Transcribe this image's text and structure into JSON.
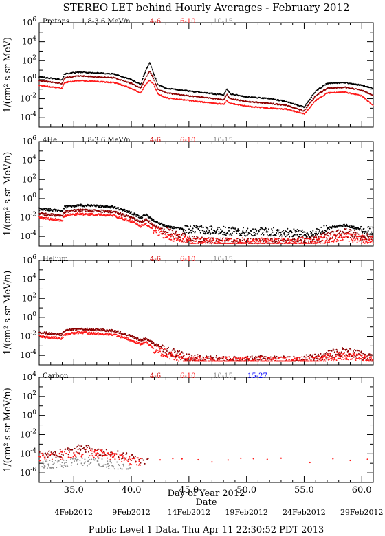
{
  "figure": {
    "title": "STEREO LET behind Hourly Averages - February 2012",
    "xlabel": "Day of Year 2012",
    "date_axis_label": "Date",
    "footer": "Public Level 1 Data. Thu Apr 11 22:30:52 PDT 2013",
    "date_ticks": [
      {
        "x": 35.0,
        "label": "4Feb2012"
      },
      {
        "x": 40.0,
        "label": "9Feb2012"
      },
      {
        "x": 45.0,
        "label": "14Feb2012"
      },
      {
        "x": 50.0,
        "label": "19Feb2012"
      },
      {
        "x": 55.0,
        "label": "24Feb2012"
      },
      {
        "x": 60.0,
        "label": "29Feb2012"
      }
    ]
  },
  "colors": {
    "black": "#000000",
    "darkred": "#8b0000",
    "red": "#ff1a1a",
    "gray": "#8c8c8c",
    "blue": "#0000ff"
  },
  "chart_data": [
    {
      "type": "scatter",
      "species": "Protons",
      "legend": [
        {
          "label": "1.8-3.6 MeV/n",
          "color": "#000000"
        },
        {
          "label": "4-6",
          "color": "#cc0000"
        },
        {
          "label": "6-10",
          "color": "#ff1a1a"
        },
        {
          "label": "10-15",
          "color": "#8c8c8c"
        }
      ],
      "ylabel": "1/(cm² s sr MeV)",
      "xlim": [
        32.0,
        61.0
      ],
      "ylim_log10": [
        -5,
        6
      ],
      "yticks_log10": [
        -4,
        -2,
        0,
        2,
        4,
        6
      ],
      "xticks": [
        35.0,
        40.0,
        45.0,
        50.0,
        55.0,
        60.0
      ],
      "xtick_labels": [],
      "series": [
        {
          "name": "1.8-3.6 MeV/n",
          "color": "#000000",
          "x": [
            32.0,
            34.0,
            34.2,
            35.5,
            37.0,
            38.5,
            40.0,
            40.8,
            41.3,
            41.6,
            41.9,
            42.3,
            43.0,
            45.0,
            48.0,
            48.3,
            48.6,
            50.0,
            52.0,
            53.5,
            55.0,
            55.3,
            56.0,
            57.0,
            58.5,
            60.0,
            61.0
          ],
          "y": [
            0.3,
            0.0,
            0.6,
            0.8,
            0.7,
            0.6,
            0.0,
            -0.5,
            1.1,
            1.8,
            0.8,
            -0.5,
            -0.9,
            -1.2,
            -1.6,
            -1.0,
            -1.5,
            -1.8,
            -2.0,
            -2.3,
            -2.9,
            -2.4,
            -1.2,
            -0.4,
            -0.3,
            -0.6,
            -0.9
          ]
        },
        {
          "name": "4-6",
          "color": "#8b0000",
          "x": [
            32.0,
            34.0,
            34.2,
            35.5,
            37.0,
            38.5,
            40.0,
            40.8,
            41.3,
            41.6,
            41.9,
            42.3,
            43.0,
            45.0,
            48.0,
            48.3,
            48.6,
            50.0,
            52.0,
            53.5,
            55.0,
            55.3,
            56.0,
            57.0,
            58.5,
            60.0,
            61.0
          ],
          "y": [
            -0.1,
            -0.4,
            0.2,
            0.4,
            0.3,
            0.2,
            -0.4,
            -0.9,
            0.3,
            0.9,
            0.2,
            -1.0,
            -1.4,
            -1.7,
            -2.1,
            -1.6,
            -2.0,
            -2.3,
            -2.5,
            -2.7,
            -3.3,
            -2.8,
            -1.7,
            -0.9,
            -0.8,
            -1.1,
            -1.7
          ]
        },
        {
          "name": "6-10",
          "color": "#ff1a1a",
          "x": [
            32.0,
            34.0,
            34.2,
            35.5,
            37.0,
            38.5,
            40.0,
            40.8,
            41.3,
            41.6,
            41.9,
            42.3,
            43.0,
            45.0,
            48.0,
            48.3,
            48.6,
            50.0,
            52.0,
            53.5,
            55.0,
            55.3,
            56.0,
            57.0,
            58.5,
            60.0,
            61.0
          ],
          "y": [
            -0.6,
            -0.9,
            -0.3,
            -0.1,
            -0.2,
            -0.3,
            -0.9,
            -1.4,
            -0.4,
            -0.1,
            -0.4,
            -1.5,
            -1.9,
            -2.2,
            -2.6,
            -2.2,
            -2.5,
            -2.8,
            -3.0,
            -3.1,
            -3.6,
            -3.2,
            -2.2,
            -1.4,
            -1.3,
            -1.7,
            -2.7
          ]
        }
      ]
    },
    {
      "type": "scatter",
      "species": "4He",
      "legend": [
        {
          "label": "1.8-3.6 MeV/n",
          "color": "#000000"
        },
        {
          "label": "4-6",
          "color": "#cc0000"
        },
        {
          "label": "6-10",
          "color": "#ff1a1a"
        },
        {
          "label": "10-15",
          "color": "#8c8c8c"
        }
      ],
      "ylabel": "1/(cm² s sr MeV/n)",
      "xlim": [
        32.0,
        61.0
      ],
      "ylim_log10": [
        -5,
        6
      ],
      "yticks_log10": [
        -4,
        -2,
        0,
        2,
        4,
        6
      ],
      "xticks": [
        35.0,
        40.0,
        45.0,
        50.0,
        55.0,
        60.0
      ],
      "xtick_labels": [],
      "series": [
        {
          "name": "1.8-3.6 MeV/n",
          "color": "#000000",
          "x": [
            32.0,
            34.0,
            34.2,
            35.5,
            37.0,
            38.5,
            40.0,
            40.8,
            41.3,
            42.0,
            43.0,
            44.5,
            46.0,
            48.0,
            50.0,
            52.0,
            54.0,
            55.5,
            56.5,
            57.5,
            58.5,
            59.5,
            61.0
          ],
          "y": [
            -1.1,
            -1.3,
            -0.9,
            -0.7,
            -0.8,
            -0.9,
            -1.5,
            -2.0,
            -1.7,
            -2.4,
            -2.9,
            -3.2,
            -3.3,
            -3.4,
            -3.5,
            -3.5,
            -3.6,
            -3.8,
            -3.4,
            -3.0,
            -2.8,
            -3.1,
            -3.5
          ]
        },
        {
          "name": "4-6",
          "color": "#8b0000",
          "x": [
            32.0,
            34.0,
            34.2,
            35.5,
            37.0,
            38.5,
            40.0,
            40.8,
            41.3,
            42.0,
            43.0,
            44.0,
            45.0,
            46.0,
            48.0,
            50.0,
            52.0,
            54.0,
            56.0,
            57.5,
            58.5,
            60.0,
            61.0
          ],
          "y": [
            -1.6,
            -1.8,
            -1.4,
            -1.2,
            -1.3,
            -1.4,
            -2.0,
            -2.5,
            -2.2,
            -2.9,
            -3.4,
            -3.9,
            -4.3,
            -4.5,
            -4.6,
            -4.6,
            -4.6,
            -4.6,
            -4.3,
            -3.8,
            -3.6,
            -3.9,
            -4.3
          ]
        },
        {
          "name": "6-10",
          "color": "#ff1a1a",
          "x": [
            32.0,
            34.0,
            34.2,
            35.5,
            37.0,
            38.5,
            40.0,
            40.8,
            41.3,
            42.0,
            43.0,
            44.0,
            45.0,
            46.0,
            48.0,
            50.0,
            52.0,
            54.0,
            56.0,
            57.5,
            58.5,
            60.0,
            61.0
          ],
          "y": [
            -2.0,
            -2.3,
            -1.8,
            -1.6,
            -1.7,
            -1.8,
            -2.4,
            -2.9,
            -2.7,
            -3.4,
            -3.8,
            -4.2,
            -4.5,
            -4.6,
            -4.6,
            -4.6,
            -4.6,
            -4.6,
            -4.5,
            -4.1,
            -4.0,
            -4.3,
            -4.5
          ]
        }
      ]
    },
    {
      "type": "scatter",
      "species": "Helium",
      "legend": [
        {
          "label": "4-6",
          "color": "#cc0000"
        },
        {
          "label": "6-10",
          "color": "#ff1a1a"
        },
        {
          "label": "10-15",
          "color": "#8c8c8c"
        }
      ],
      "ylabel": "1/(cm² s sr MeV/n)",
      "xlim": [
        32.0,
        61.0
      ],
      "ylim_log10": [
        -5,
        6
      ],
      "yticks_log10": [
        -4,
        -2,
        0,
        2,
        4,
        6
      ],
      "xticks": [
        35.0,
        40.0,
        45.0,
        50.0,
        55.0,
        60.0
      ],
      "xtick_labels": [],
      "series": [
        {
          "name": "4-6",
          "color": "#8b0000",
          "x": [
            32.0,
            34.0,
            34.2,
            35.5,
            37.0,
            38.5,
            40.0,
            40.8,
            41.3,
            42.0,
            43.0,
            44.0,
            45.0,
            46.0,
            48.0,
            50.0,
            52.0,
            54.0,
            56.0,
            57.5,
            58.5,
            60.0,
            61.0
          ],
          "y": [
            -1.6,
            -1.8,
            -1.4,
            -1.2,
            -1.3,
            -1.4,
            -2.0,
            -2.4,
            -2.2,
            -2.8,
            -3.4,
            -3.9,
            -4.3,
            -4.4,
            -4.5,
            -4.5,
            -4.5,
            -4.5,
            -4.3,
            -3.8,
            -3.6,
            -4.0,
            -4.3
          ]
        },
        {
          "name": "6-10",
          "color": "#ff1a1a",
          "x": [
            32.0,
            34.0,
            34.2,
            35.5,
            37.0,
            38.5,
            40.0,
            40.8,
            41.3,
            42.0,
            43.0,
            44.0,
            45.0,
            46.0,
            48.0,
            50.0,
            52.0,
            54.0,
            56.0,
            57.5,
            58.5,
            60.0,
            61.0
          ],
          "y": [
            -2.0,
            -2.2,
            -1.8,
            -1.6,
            -1.7,
            -1.8,
            -2.4,
            -2.8,
            -2.6,
            -3.3,
            -3.8,
            -4.2,
            -4.5,
            -4.6,
            -4.6,
            -4.6,
            -4.6,
            -4.6,
            -4.5,
            -4.2,
            -4.0,
            -4.3,
            -4.5
          ]
        }
      ]
    },
    {
      "type": "scatter",
      "species": "Carbon",
      "legend": [
        {
          "label": "4-6",
          "color": "#cc0000"
        },
        {
          "label": "6-10",
          "color": "#ff1a1a"
        },
        {
          "label": "10-15",
          "color": "#8c8c8c"
        },
        {
          "label": "15-27",
          "color": "#0000ff"
        }
      ],
      "ylabel": "1/(cm² s sr MeV/n)",
      "xlim": [
        32.0,
        61.0
      ],
      "ylim_log10": [
        -7,
        4
      ],
      "yticks_log10": [
        -6,
        -4,
        -2,
        0,
        2,
        4
      ],
      "xticks": [
        35.0,
        40.0,
        45.0,
        50.0,
        55.0,
        60.0
      ],
      "xtick_labels": [
        "35.0",
        "40.0",
        "45.0",
        "50.0",
        "55.0",
        "60.0"
      ],
      "series": [
        {
          "name": "4-6",
          "color": "#8b0000",
          "x": [
            32.0,
            33.0,
            34.0,
            35.0,
            35.5,
            36.5,
            37.5,
            38.5,
            39.5,
            40.5,
            41.5
          ],
          "y": [
            -4.0,
            -4.0,
            -3.9,
            -3.6,
            -3.5,
            -3.6,
            -3.8,
            -4.0,
            -4.3,
            -4.5,
            -4.8
          ]
        },
        {
          "name": "6-10",
          "color": "#ff1a1a",
          "x": [
            32.0,
            33.0,
            34.0,
            35.0,
            36.0,
            37.0,
            38.0,
            39.0,
            40.0,
            41.0
          ],
          "y": [
            -4.3,
            -4.3,
            -4.2,
            -3.9,
            -3.9,
            -4.0,
            -4.2,
            -4.4,
            -4.7,
            -4.9
          ]
        },
        {
          "name": "10-15",
          "color": "#8c8c8c",
          "x": [
            32.0,
            33.0,
            34.0,
            35.0,
            36.0,
            37.0,
            38.0,
            39.0,
            40.0
          ],
          "y": [
            -5.2,
            -5.1,
            -5.0,
            -4.8,
            -4.8,
            -4.9,
            -5.1,
            -5.3,
            -5.5
          ]
        }
      ]
    }
  ]
}
